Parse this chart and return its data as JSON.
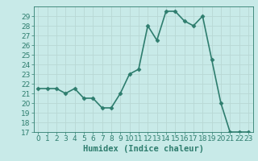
{
  "x": [
    0,
    1,
    2,
    3,
    4,
    5,
    6,
    7,
    8,
    9,
    10,
    11,
    12,
    13,
    14,
    15,
    16,
    17,
    18,
    19,
    20,
    21,
    22,
    23
  ],
  "y": [
    21.5,
    21.5,
    21.5,
    21.0,
    21.5,
    20.5,
    20.5,
    19.5,
    19.5,
    21.0,
    23.0,
    23.5,
    28.0,
    26.5,
    29.5,
    29.5,
    28.5,
    28.0,
    29.0,
    24.5,
    20.0,
    17.0,
    17.0,
    17.0
  ],
  "line_color": "#2e7d6e",
  "marker": "D",
  "marker_size": 2.5,
  "background_color": "#c8eae8",
  "grid_color": "#b8d8d4",
  "xlabel": "Humidex (Indice chaleur)",
  "ylim": [
    17,
    30
  ],
  "xlim": [
    -0.5,
    23.5
  ],
  "yticks": [
    17,
    18,
    19,
    20,
    21,
    22,
    23,
    24,
    25,
    26,
    27,
    28,
    29
  ],
  "xticks": [
    0,
    1,
    2,
    3,
    4,
    5,
    6,
    7,
    8,
    9,
    10,
    11,
    12,
    13,
    14,
    15,
    16,
    17,
    18,
    19,
    20,
    21,
    22,
    23
  ],
  "tick_fontsize": 6.5,
  "xlabel_fontsize": 7.5,
  "line_width": 1.2
}
